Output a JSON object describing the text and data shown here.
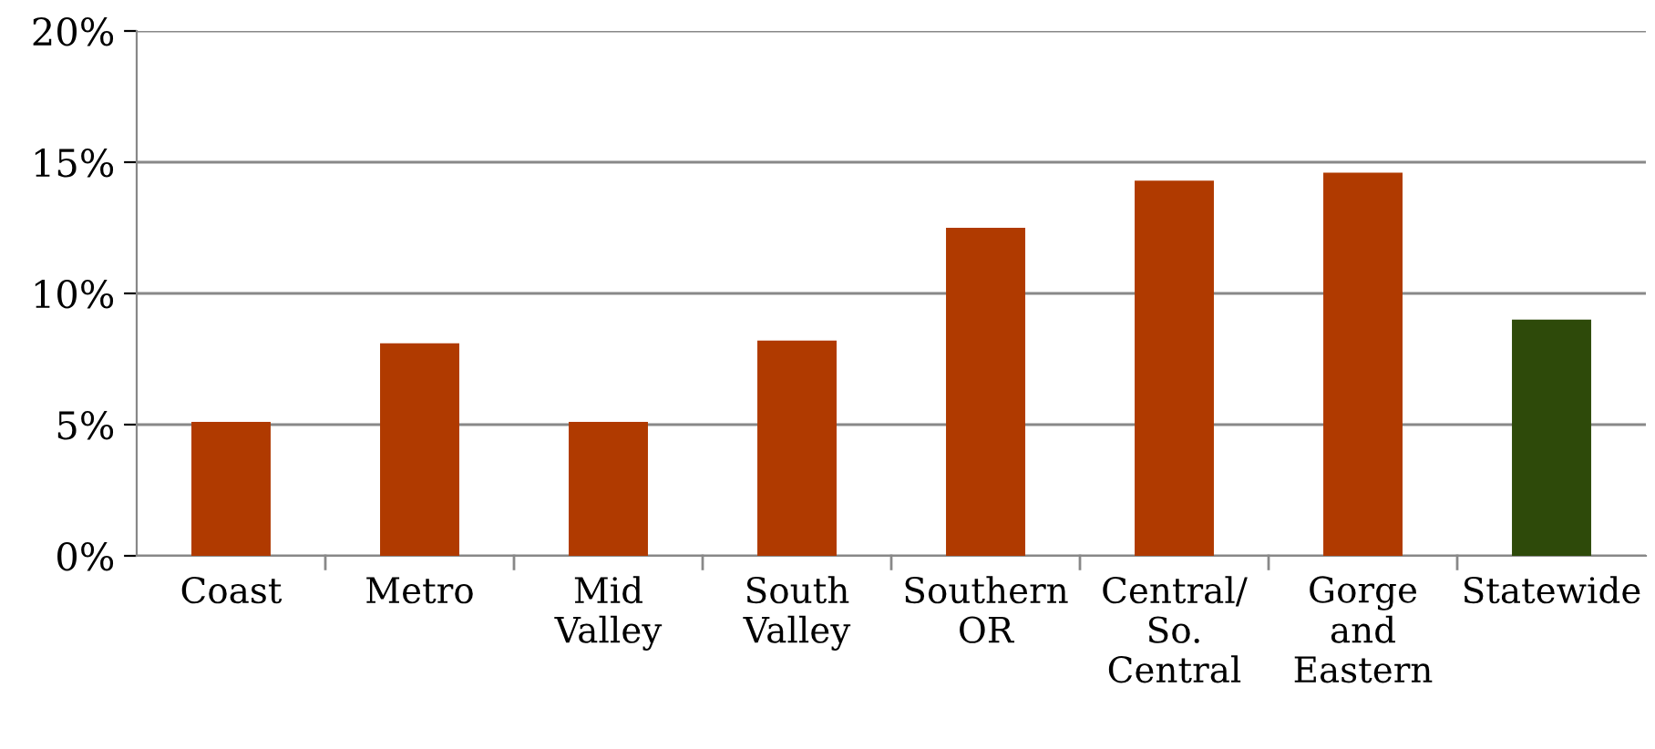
{
  "chart_data": {
    "type": "bar",
    "categories": [
      "Coast",
      "Metro",
      "Mid\nValley",
      "South\nValley",
      "Southern\nOR",
      "Central/\nSo.\nCentral",
      "Gorge\nand\nEastern",
      "Statewide"
    ],
    "values": [
      5.1,
      8.1,
      5.1,
      8.2,
      12.5,
      14.3,
      14.6,
      9.0
    ],
    "colors": [
      "#b03a00",
      "#b03a00",
      "#b03a00",
      "#b03a00",
      "#b03a00",
      "#b03a00",
      "#b03a00",
      "#2e4a0a"
    ],
    "ylim": [
      0,
      20
    ],
    "yticks": [
      {
        "value": 0,
        "label": "0%"
      },
      {
        "value": 5,
        "label": "5%"
      },
      {
        "value": 10,
        "label": "10%"
      },
      {
        "value": 15,
        "label": "15%"
      },
      {
        "value": 20,
        "label": "20%"
      }
    ],
    "grid": "y"
  }
}
